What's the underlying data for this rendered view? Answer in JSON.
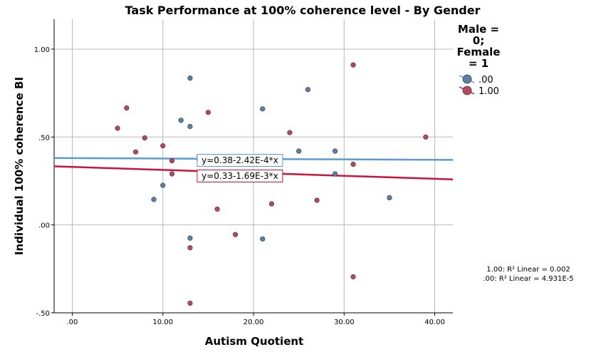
{
  "chart_data": {
    "type": "scatter",
    "title": "Task Performance at 100% coherence level - By Gender",
    "xlabel": "Autism Quotient",
    "ylabel": "Individual 100% coherence BI",
    "xlim": [
      -2,
      42
    ],
    "ylim": [
      -0.5,
      1.17
    ],
    "x_ticks": [
      0,
      10,
      20,
      30,
      40
    ],
    "x_tick_labels": [
      ".00",
      "10.00",
      "20.00",
      "30.00",
      "40.00"
    ],
    "y_ticks": [
      -0.5,
      0,
      0.5,
      1.0
    ],
    "y_tick_labels": [
      "-.50",
      ".00",
      ".50",
      "1.00"
    ],
    "grid": true,
    "legend_position": "top-right",
    "legend_title_lines": [
      "Male =",
      "0;",
      "Female",
      "= 1"
    ],
    "series": [
      {
        "name": ".00",
        "color": "#5b7fa6",
        "line_color": "#5b9bd5",
        "points": [
          {
            "x": 9,
            "y": 0.145
          },
          {
            "x": 10,
            "y": 0.225
          },
          {
            "x": 12,
            "y": 0.595
          },
          {
            "x": 13,
            "y": 0.835
          },
          {
            "x": 13,
            "y": 0.56
          },
          {
            "x": 13,
            "y": -0.075
          },
          {
            "x": 14,
            "y": 0.37
          },
          {
            "x": 21,
            "y": 0.66
          },
          {
            "x": 21,
            "y": -0.08
          },
          {
            "x": 25,
            "y": 0.42
          },
          {
            "x": 26,
            "y": 0.77
          },
          {
            "x": 29,
            "y": 0.42
          },
          {
            "x": 29,
            "y": 0.29
          },
          {
            "x": 35,
            "y": 0.155
          }
        ],
        "fit": {
          "intercept": 0.38,
          "slope": -0.000242,
          "label": "y=0.38-2.42E-4*x"
        }
      },
      {
        "name": "1.00",
        "color": "#b5485d",
        "line_color": "#c8143c",
        "points": [
          {
            "x": 5,
            "y": 0.55
          },
          {
            "x": 6,
            "y": 0.665
          },
          {
            "x": 7,
            "y": 0.415
          },
          {
            "x": 8,
            "y": 0.495
          },
          {
            "x": 10,
            "y": 0.45
          },
          {
            "x": 11,
            "y": 0.365
          },
          {
            "x": 11,
            "y": 0.29
          },
          {
            "x": 13,
            "y": -0.13
          },
          {
            "x": 13,
            "y": -0.445
          },
          {
            "x": 14,
            "y": 0.39
          },
          {
            "x": 15,
            "y": 0.64
          },
          {
            "x": 16,
            "y": 0.09
          },
          {
            "x": 18,
            "y": -0.055
          },
          {
            "x": 22,
            "y": 0.12
          },
          {
            "x": 24,
            "y": 0.525
          },
          {
            "x": 27,
            "y": 0.14
          },
          {
            "x": 31,
            "y": 0.91
          },
          {
            "x": 31,
            "y": 0.345
          },
          {
            "x": 31,
            "y": -0.295
          },
          {
            "x": 39,
            "y": 0.5
          }
        ],
        "fit": {
          "intercept": 0.33,
          "slope": -0.00169,
          "label": "y=0.33-1.69E-3*x"
        }
      }
    ],
    "r2_lines": [
      "1.00: R² Linear = 0.002",
      ".00: R² Linear = 4.931E-5"
    ]
  }
}
